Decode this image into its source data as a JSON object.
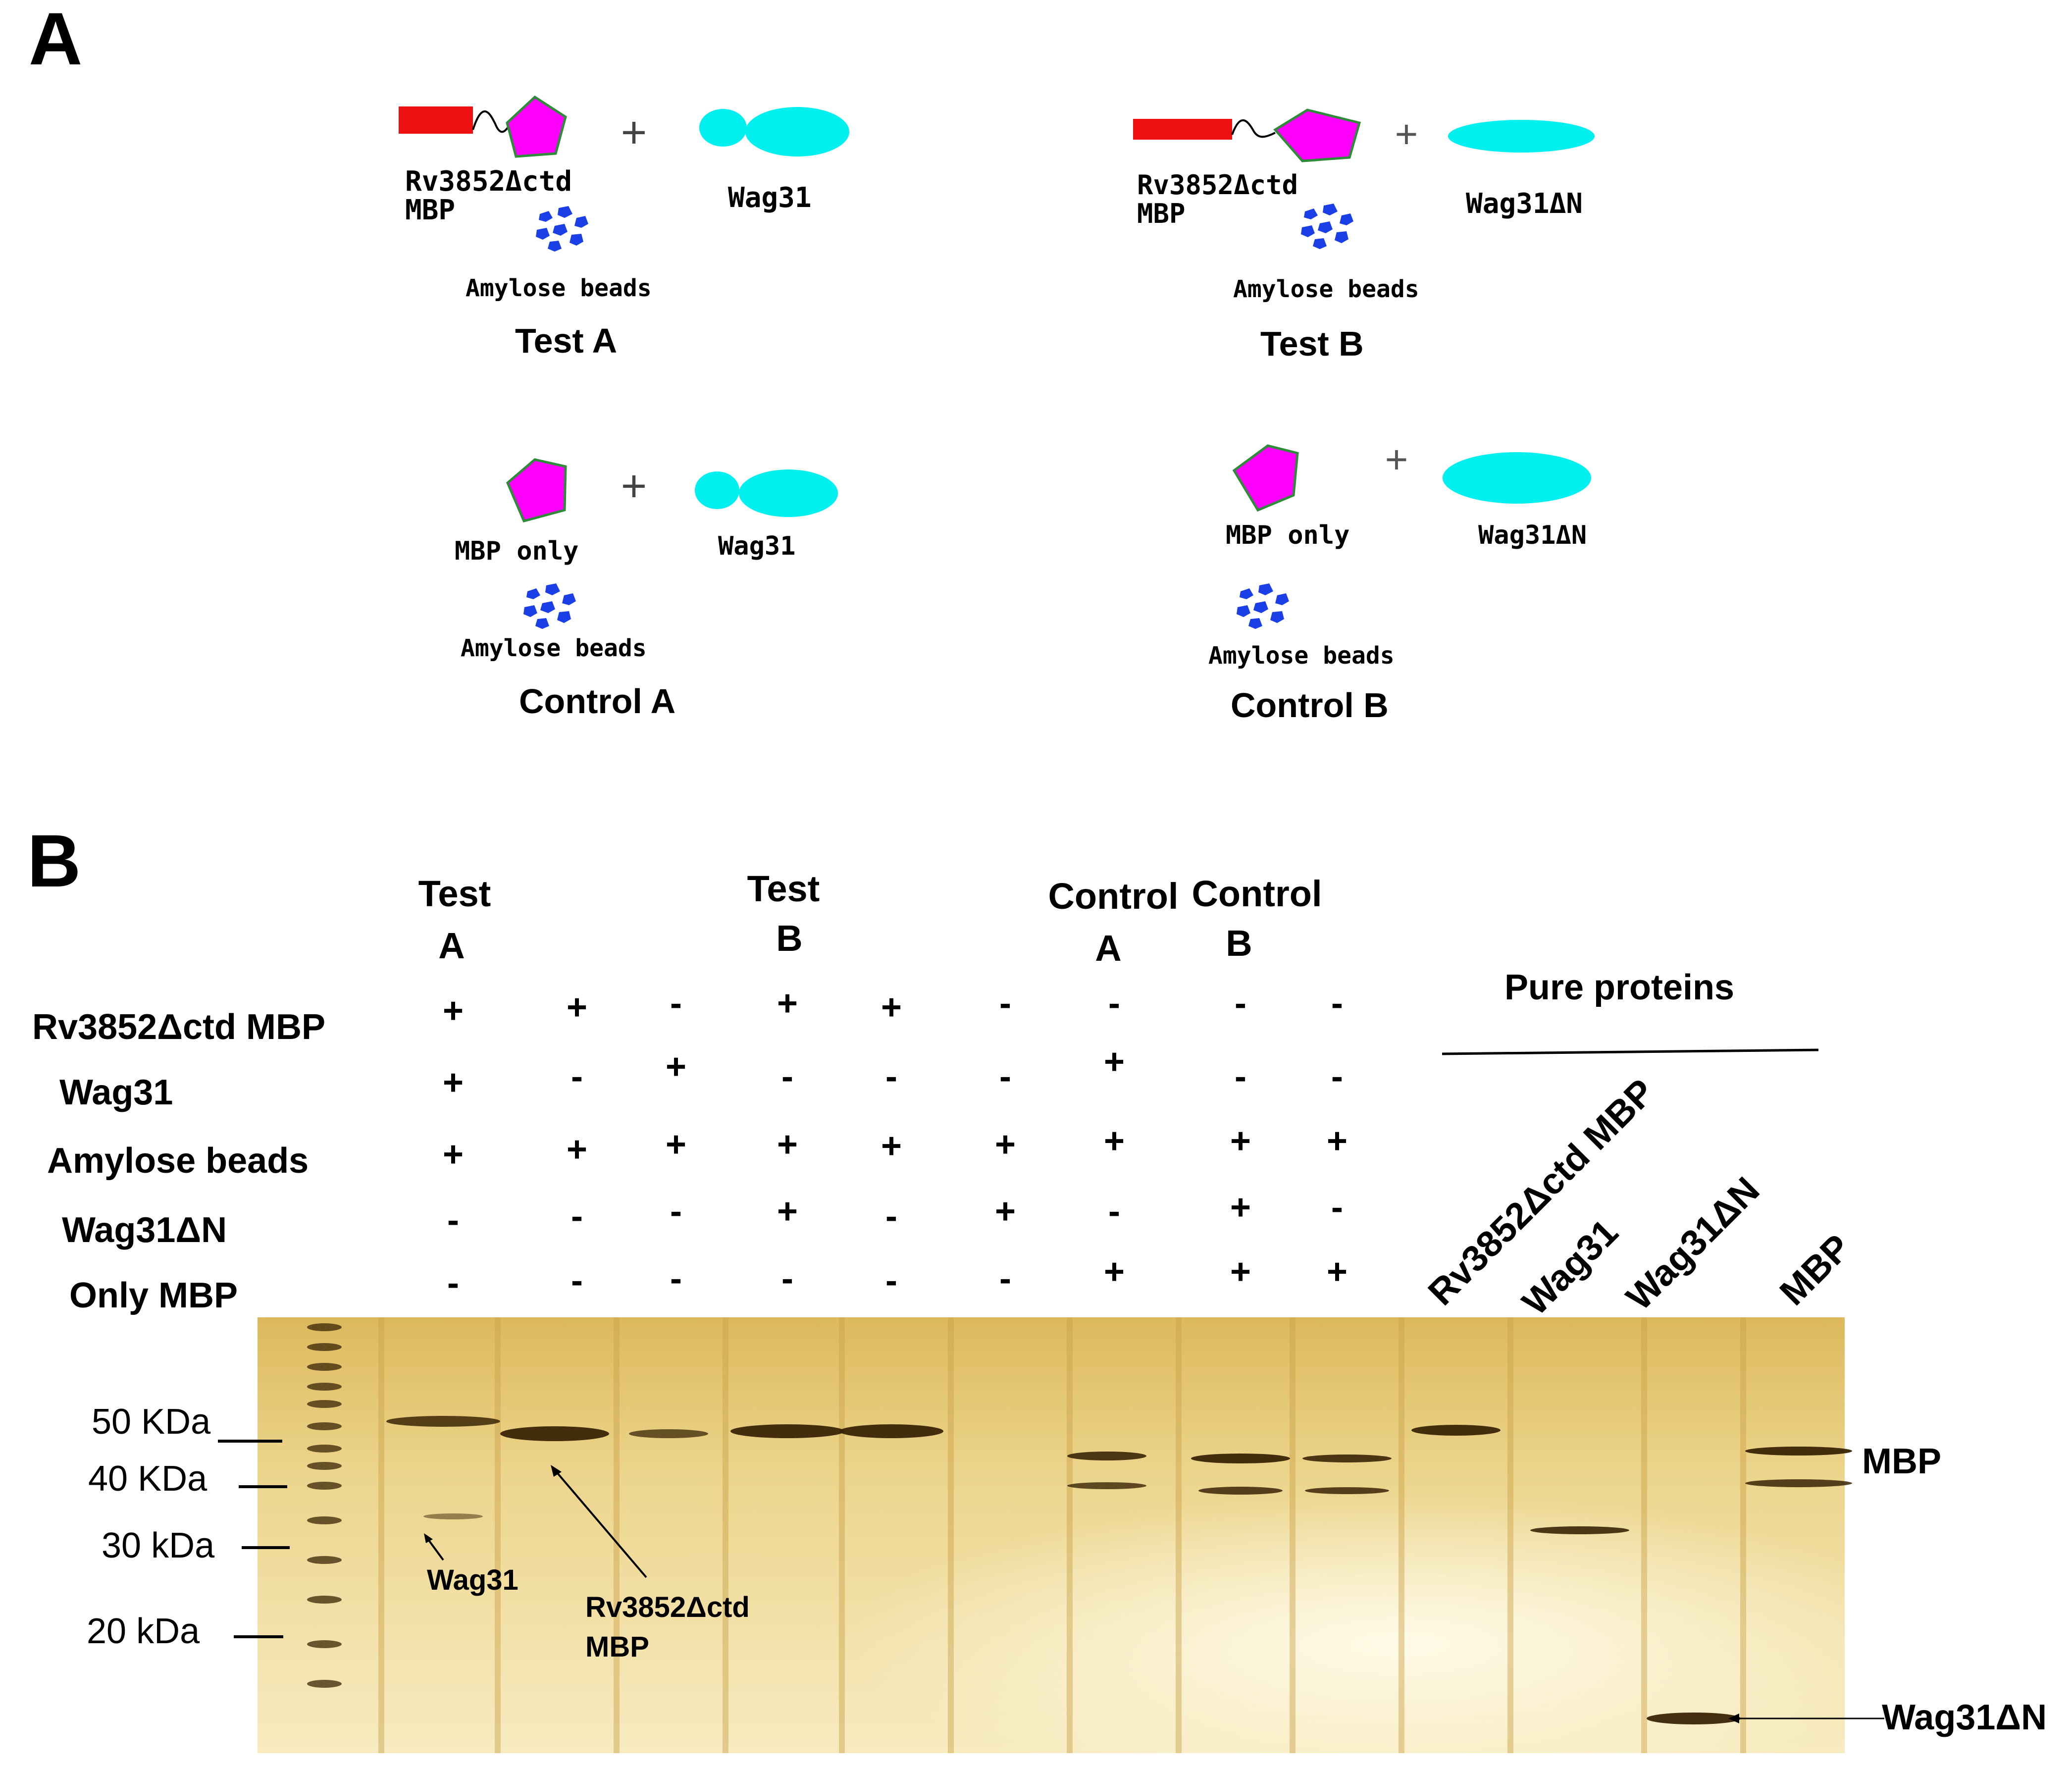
{
  "panel_a": {
    "label": "A",
    "test_a": {
      "fusion_label_1": "Rv3852Δctd",
      "fusion_label_2": "MBP",
      "partner_label": "Wag31",
      "beads_label": "Amylose beads",
      "title": "Test A"
    },
    "test_b": {
      "fusion_label_1": "Rv3852Δctd",
      "fusion_label_2": "MBP",
      "partner_label": "Wag31ΔN",
      "beads_label": "Amylose beads",
      "title": "Test B"
    },
    "control_a": {
      "bait_label": "MBP only",
      "partner_label": "Wag31",
      "beads_label": "Amylose beads",
      "title": "Control A"
    },
    "control_b": {
      "bait_label": "MBP only",
      "partner_label": "Wag31ΔN",
      "beads_label": "Amylose beads",
      "title": "Control B"
    },
    "colors": {
      "red_tag": "#ef1111",
      "mbp_pentagon": "#ff00ff",
      "pentagon_outline": "#2f8a3a",
      "wag31": "#00f0f0",
      "beads": "#1a3fe6"
    },
    "plus_symbol": "+"
  },
  "panel_b": {
    "label": "B",
    "group_headers": {
      "test_a_1": "Test",
      "test_a_2": "A",
      "test_b_1": "Test",
      "test_b_2": "B",
      "control_a_1": "Control",
      "control_a_2": "A",
      "control_b_1": "Control",
      "control_b_2": "B"
    },
    "row_labels": [
      "Rv3852Δctd MBP",
      "Wag31",
      "Amylose beads",
      "Wag31ΔN",
      "Only MBP"
    ],
    "lane_signs": [
      [
        "+",
        "+",
        "-",
        "+",
        "+",
        "-",
        "-",
        "-",
        "-"
      ],
      [
        "+",
        "-",
        "+",
        "-",
        "-",
        "-",
        "+",
        "-",
        "-"
      ],
      [
        "+",
        "+",
        "+",
        "+",
        "+",
        "+",
        "+",
        "+",
        "+"
      ],
      [
        "-",
        "-",
        "-",
        "+",
        "-",
        "+",
        "-",
        "+",
        "-"
      ],
      [
        "-",
        "-",
        "-",
        "-",
        "-",
        "-",
        "+",
        "+",
        "+"
      ]
    ],
    "pure_proteins_header": "Pure proteins",
    "pure_lanes": [
      "Rv3852Δctd MBP",
      "Wag31",
      "Wag31ΔN",
      "MBP"
    ],
    "markers": [
      "50 KDa",
      "40 KDa",
      "30 kDa",
      "20 kDa"
    ],
    "annotations": {
      "wag31": "Wag31",
      "rv_1": "Rv3852Δctd",
      "rv_2": "MBP",
      "mbp_right": "MBP",
      "wag31dn_right": "Wag31ΔN"
    },
    "colors": {
      "gel_light": "#f6e8b8",
      "gel_mid": "#e8cf85",
      "band": "#3a2406"
    }
  }
}
